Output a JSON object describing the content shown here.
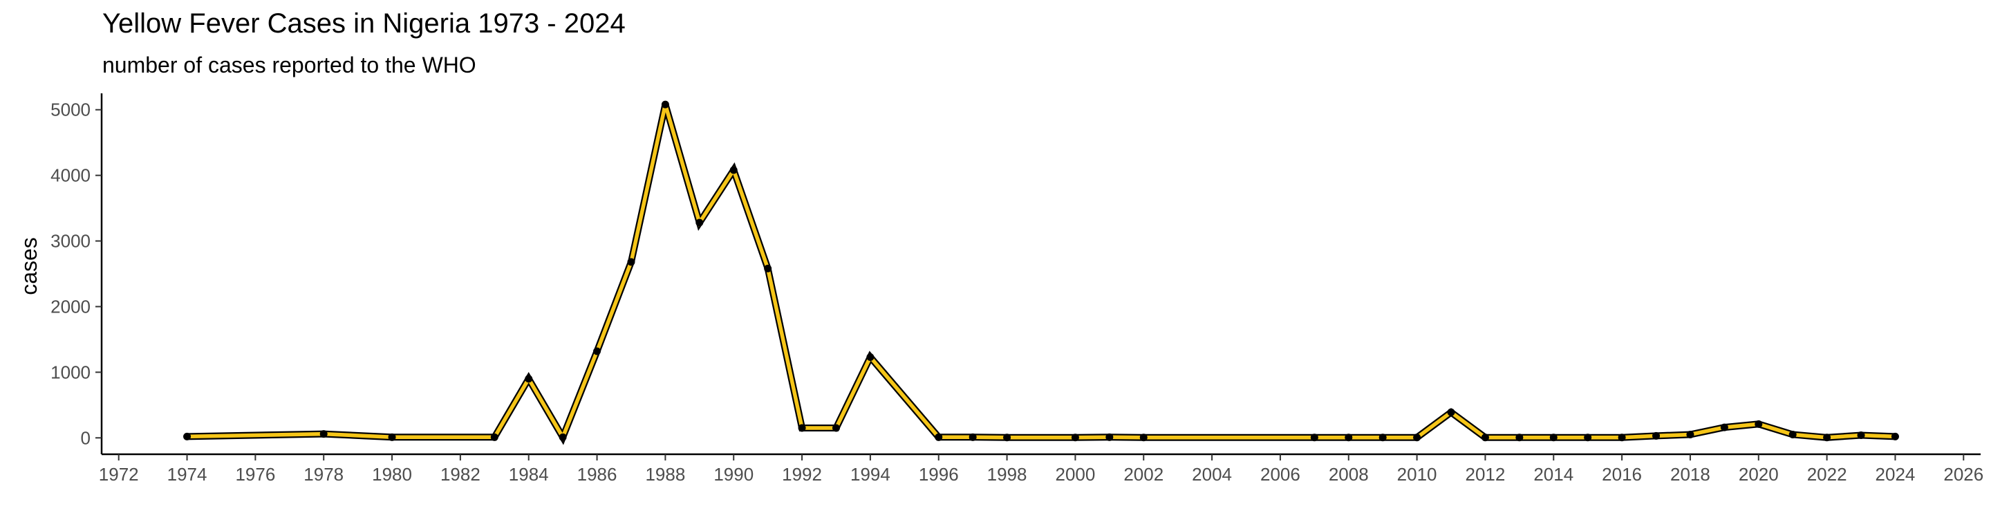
{
  "chart_data": {
    "type": "line",
    "title": "Yellow Fever Cases in Nigeria 1973 - 2024",
    "subtitle": "number of cases reported to the WHO",
    "xlabel": "",
    "ylabel": "cases",
    "xlim": [
      1971.5,
      2026.5
    ],
    "ylim": [
      -250,
      5250
    ],
    "x_ticks": [
      "1972",
      "1974",
      "1976",
      "1978",
      "1980",
      "1982",
      "1984",
      "1986",
      "1988",
      "1990",
      "1992",
      "1994",
      "1996",
      "1998",
      "2000",
      "2002",
      "2004",
      "2006",
      "2008",
      "2010",
      "2012",
      "2014",
      "2016",
      "2018",
      "2020",
      "2022",
      "2024",
      "2026"
    ],
    "y_ticks": [
      "0",
      "1000",
      "2000",
      "3000",
      "4000",
      "5000"
    ],
    "grid": false,
    "colors": {
      "line_fill": "#F5C518",
      "line_outline": "#000000",
      "points": "#000000"
    },
    "x": [
      1974,
      1978,
      1980,
      1983,
      1984,
      1985,
      1986,
      1987,
      1988,
      1989,
      1990,
      1991,
      1992,
      1993,
      1994,
      1996,
      1997,
      1998,
      2000,
      2001,
      2002,
      2007,
      2008,
      2009,
      2010,
      2011,
      2012,
      2013,
      2014,
      2015,
      2016,
      2017,
      2018,
      2019,
      2020,
      2021,
      2022,
      2023,
      2024
    ],
    "values": [
      20,
      60,
      10,
      10,
      900,
      10,
      1320,
      2680,
      5080,
      3280,
      4080,
      2580,
      150,
      150,
      1230,
      10,
      10,
      5,
      5,
      10,
      5,
      5,
      5,
      5,
      5,
      390,
      5,
      5,
      5,
      5,
      5,
      30,
      50,
      160,
      210,
      50,
      5,
      40,
      20
    ]
  }
}
